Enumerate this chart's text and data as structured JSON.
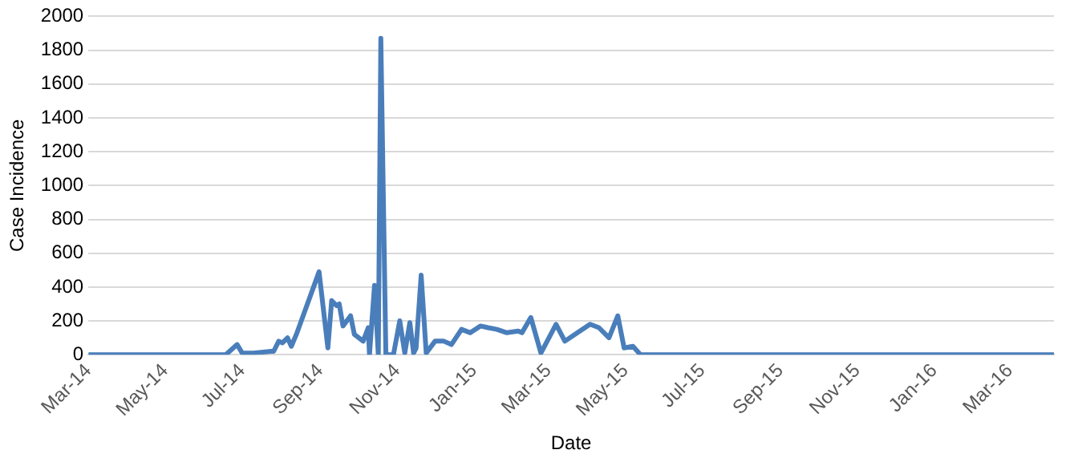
{
  "chart_data": {
    "type": "line",
    "xlabel": "Date",
    "ylabel": "Case Incidence",
    "x": [
      "2014-03-01",
      "2014-06-18",
      "2014-06-27",
      "2014-07-01",
      "2014-07-10",
      "2014-07-24",
      "2014-07-26",
      "2014-07-30",
      "2014-08-02",
      "2014-08-06",
      "2014-08-09",
      "2014-08-13",
      "2014-08-31",
      "2014-09-07",
      "2014-09-10",
      "2014-09-14",
      "2014-09-16",
      "2014-09-19",
      "2014-09-25",
      "2014-09-28",
      "2014-10-05",
      "2014-10-09",
      "2014-10-10",
      "2014-10-14",
      "2014-10-17",
      "2014-10-19",
      "2014-10-23",
      "2014-10-29",
      "2014-11-03",
      "2014-11-07",
      "2014-11-11",
      "2014-11-14",
      "2014-11-16",
      "2014-11-20",
      "2014-11-24",
      "2014-12-01",
      "2014-12-08",
      "2014-12-14",
      "2014-12-22",
      "2014-12-29",
      "2015-01-06",
      "2015-01-12",
      "2015-01-19",
      "2015-01-27",
      "2015-02-05",
      "2015-02-08",
      "2015-02-15",
      "2015-02-23",
      "2015-03-07",
      "2015-03-14",
      "2015-03-24",
      "2015-04-03",
      "2015-04-10",
      "2015-04-18",
      "2015-04-25",
      "2015-04-30",
      "2015-05-07",
      "2015-05-13",
      "2016-04-05"
    ],
    "series": [
      {
        "color": "#4a7ebb",
        "values": [
          0,
          0,
          60,
          10,
          10,
          20,
          20,
          80,
          70,
          100,
          50,
          120,
          490,
          40,
          320,
          290,
          300,
          170,
          230,
          120,
          80,
          160,
          0,
          410,
          0,
          1870,
          0,
          0,
          200,
          10,
          190,
          10,
          40,
          470,
          10,
          80,
          80,
          60,
          150,
          130,
          170,
          160,
          150,
          130,
          140,
          130,
          220,
          10,
          180,
          80,
          130,
          180,
          160,
          100,
          230,
          40,
          50,
          0,
          0
        ]
      }
    ],
    "xlim": [
      "2014-03-01",
      "2016-04-05"
    ],
    "xticks": [
      {
        "value": "2014-03-01",
        "label": "Mar-14"
      },
      {
        "value": "2014-05-01",
        "label": "May-14"
      },
      {
        "value": "2014-07-01",
        "label": "Jul-14"
      },
      {
        "value": "2014-09-01",
        "label": "Sep-14"
      },
      {
        "value": "2014-11-01",
        "label": "Nov-14"
      },
      {
        "value": "2015-01-01",
        "label": "Jan-15"
      },
      {
        "value": "2015-03-01",
        "label": "Mar-15"
      },
      {
        "value": "2015-05-01",
        "label": "May-15"
      },
      {
        "value": "2015-07-01",
        "label": "Jul-15"
      },
      {
        "value": "2015-09-01",
        "label": "Sep-15"
      },
      {
        "value": "2015-11-01",
        "label": "Nov-15"
      },
      {
        "value": "2016-01-01",
        "label": "Jan-16"
      },
      {
        "value": "2016-03-01",
        "label": "Mar-16"
      }
    ],
    "ylim": [
      0,
      2000
    ],
    "yticks": [
      0,
      200,
      400,
      600,
      800,
      1000,
      1200,
      1400,
      1600,
      1800,
      2000
    ],
    "grid": "y",
    "legend": false,
    "marker": "none",
    "line_style": "solid"
  }
}
